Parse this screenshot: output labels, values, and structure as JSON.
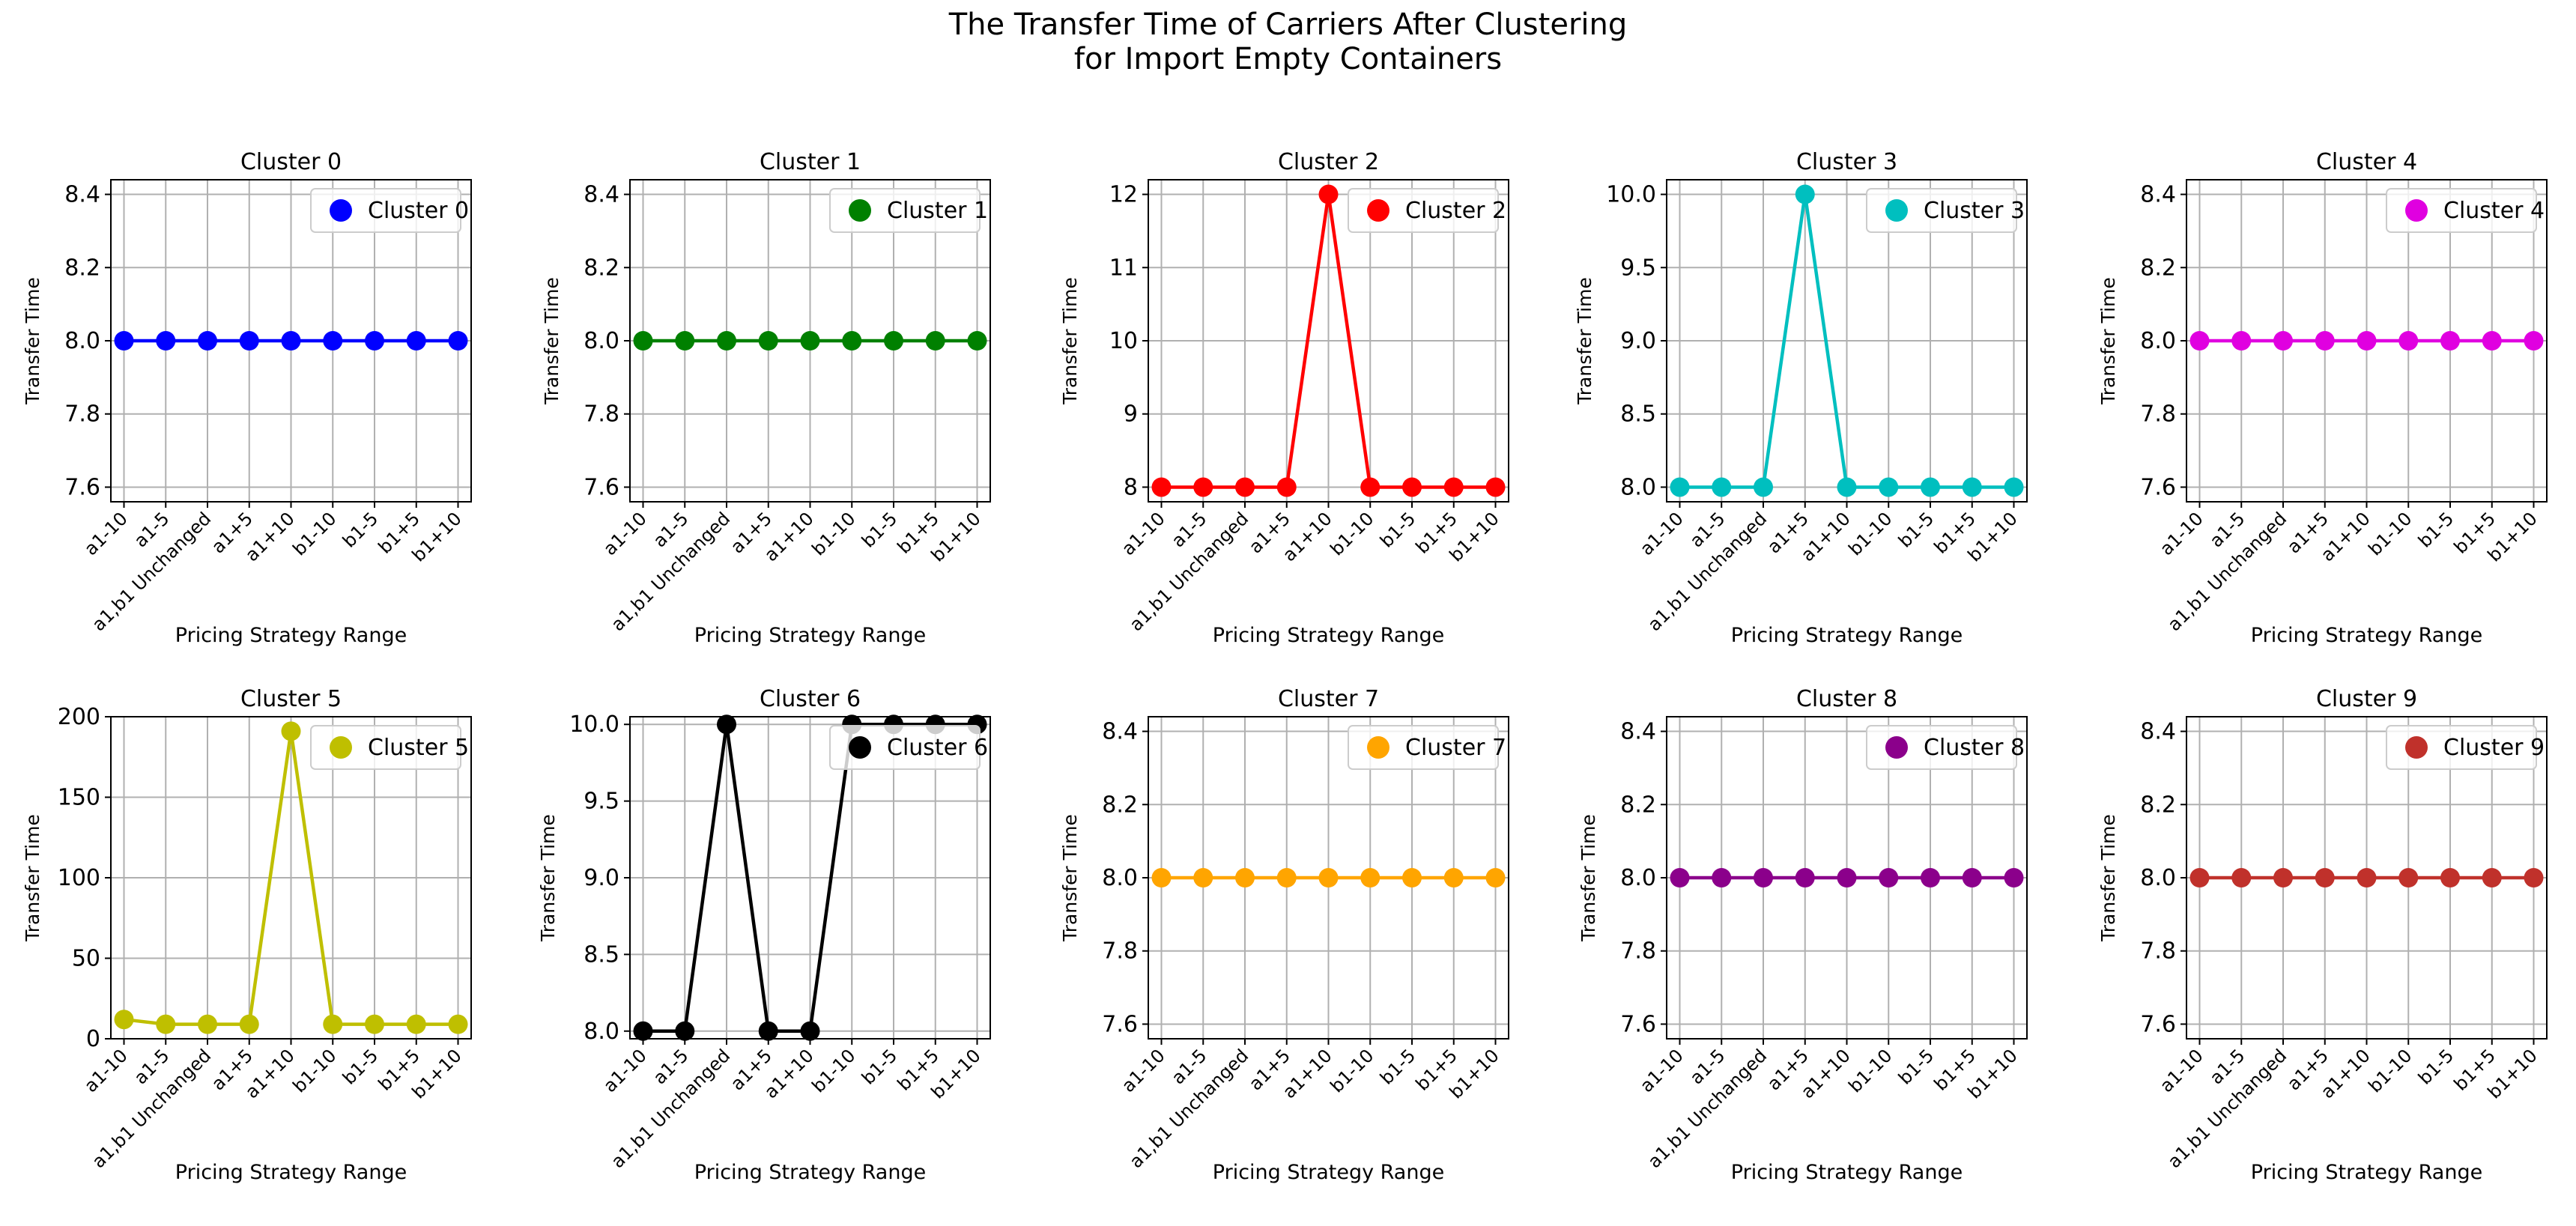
{
  "figure": {
    "title_line1": "The Transfer Time of Carriers After Clustering",
    "title_line2": "for Import Empty Containers"
  },
  "chart_data": [
    {
      "type": "line",
      "title": "Cluster 0",
      "legend": "Cluster 0",
      "color": "#0000ff",
      "xlabel": "Pricing Strategy Range",
      "ylabel": "Transfer Time",
      "categories": [
        "a1-10",
        "a1-5",
        "a1,b1 Unchanged",
        "a1+5",
        "a1+10",
        "b1-10",
        "b1-5",
        "b1+5",
        "b1+10"
      ],
      "values": [
        8,
        8,
        8,
        8,
        8,
        8,
        8,
        8,
        8
      ],
      "ylim": [
        7.56,
        8.44
      ],
      "yticks": [
        7.6,
        7.8,
        8.0,
        8.2,
        8.4
      ],
      "ytick_labels": [
        "7.6",
        "7.8",
        "8.0",
        "8.2",
        "8.4"
      ],
      "legend_position": "upper right",
      "grid": true
    },
    {
      "type": "line",
      "title": "Cluster 1",
      "legend": "Cluster 1",
      "color": "#008000",
      "xlabel": "Pricing Strategy Range",
      "ylabel": "Transfer Time",
      "categories": [
        "a1-10",
        "a1-5",
        "a1,b1 Unchanged",
        "a1+5",
        "a1+10",
        "b1-10",
        "b1-5",
        "b1+5",
        "b1+10"
      ],
      "values": [
        8,
        8,
        8,
        8,
        8,
        8,
        8,
        8,
        8
      ],
      "ylim": [
        7.56,
        8.44
      ],
      "yticks": [
        7.6,
        7.8,
        8.0,
        8.2,
        8.4
      ],
      "ytick_labels": [
        "7.6",
        "7.8",
        "8.0",
        "8.2",
        "8.4"
      ],
      "legend_position": "upper right",
      "grid": true
    },
    {
      "type": "line",
      "title": "Cluster 2",
      "legend": "Cluster 2",
      "color": "#ff0000",
      "xlabel": "Pricing Strategy Range",
      "ylabel": "Transfer Time",
      "categories": [
        "a1-10",
        "a1-5",
        "a1,b1 Unchanged",
        "a1+5",
        "a1+10",
        "b1-10",
        "b1-5",
        "b1+5",
        "b1+10"
      ],
      "values": [
        8,
        8,
        8,
        8,
        12,
        8,
        8,
        8,
        8
      ],
      "ylim": [
        7.8,
        12.2
      ],
      "yticks": [
        8,
        9,
        10,
        11,
        12
      ],
      "ytick_labels": [
        "8",
        "9",
        "10",
        "11",
        "12"
      ],
      "legend_position": "upper right",
      "grid": true
    },
    {
      "type": "line",
      "title": "Cluster 3",
      "legend": "Cluster 3",
      "color": "#00bfbf",
      "xlabel": "Pricing Strategy Range",
      "ylabel": "Transfer Time",
      "categories": [
        "a1-10",
        "a1-5",
        "a1,b1 Unchanged",
        "a1+5",
        "a1+10",
        "b1-10",
        "b1-5",
        "b1+5",
        "b1+10"
      ],
      "values": [
        8,
        8,
        8,
        10,
        8,
        8,
        8,
        8,
        8
      ],
      "ylim": [
        7.9,
        10.1
      ],
      "yticks": [
        8.0,
        8.5,
        9.0,
        9.5,
        10.0
      ],
      "ytick_labels": [
        "8.0",
        "8.5",
        "9.0",
        "9.5",
        "10.0"
      ],
      "legend_position": "upper right",
      "grid": true
    },
    {
      "type": "line",
      "title": "Cluster 4",
      "legend": "Cluster 4",
      "color": "#e000e0",
      "xlabel": "Pricing Strategy Range",
      "ylabel": "Transfer Time",
      "categories": [
        "a1-10",
        "a1-5",
        "a1,b1 Unchanged",
        "a1+5",
        "a1+10",
        "b1-10",
        "b1-5",
        "b1+5",
        "b1+10"
      ],
      "values": [
        8,
        8,
        8,
        8,
        8,
        8,
        8,
        8,
        8
      ],
      "ylim": [
        7.56,
        8.44
      ],
      "yticks": [
        7.6,
        7.8,
        8.0,
        8.2,
        8.4
      ],
      "ytick_labels": [
        "7.6",
        "7.8",
        "8.0",
        "8.2",
        "8.4"
      ],
      "legend_position": "upper right",
      "grid": true
    },
    {
      "type": "line",
      "title": "Cluster 5",
      "legend": "Cluster 5",
      "color": "#bfbf00",
      "xlabel": "Pricing Strategy Range",
      "ylabel": "Transfer Time",
      "categories": [
        "a1-10",
        "a1-5",
        "a1,b1 Unchanged",
        "a1+5",
        "a1+10",
        "b1-10",
        "b1-5",
        "b1+5",
        "b1+10"
      ],
      "values": [
        12,
        9,
        9,
        9,
        191,
        9,
        9,
        9,
        9
      ],
      "ylim": [
        0,
        200
      ],
      "yticks": [
        0,
        50,
        100,
        150,
        200
      ],
      "ytick_labels": [
        "0",
        "50",
        "100",
        "150",
        "200"
      ],
      "legend_position": "upper right",
      "grid": true
    },
    {
      "type": "line",
      "title": "Cluster 6",
      "legend": "Cluster 6",
      "color": "#000000",
      "xlabel": "Pricing Strategy Range",
      "ylabel": "Transfer Time",
      "categories": [
        "a1-10",
        "a1-5",
        "a1,b1 Unchanged",
        "a1+5",
        "a1+10",
        "b1-10",
        "b1-5",
        "b1+5",
        "b1+10"
      ],
      "values": [
        8,
        8,
        10,
        8,
        8,
        10,
        10,
        10,
        10
      ],
      "ylim": [
        7.95,
        10.05
      ],
      "yticks": [
        8.0,
        8.5,
        9.0,
        9.5,
        10.0
      ],
      "ytick_labels": [
        "8.0",
        "8.5",
        "9.0",
        "9.5",
        "10.0"
      ],
      "legend_position": "upper right",
      "grid": true
    },
    {
      "type": "line",
      "title": "Cluster 7",
      "legend": "Cluster 7",
      "color": "#ffa500",
      "xlabel": "Pricing Strategy Range",
      "ylabel": "Transfer Time",
      "categories": [
        "a1-10",
        "a1-5",
        "a1,b1 Unchanged",
        "a1+5",
        "a1+10",
        "b1-10",
        "b1-5",
        "b1+5",
        "b1+10"
      ],
      "values": [
        8,
        8,
        8,
        8,
        8,
        8,
        8,
        8,
        8
      ],
      "ylim": [
        7.56,
        8.44
      ],
      "yticks": [
        7.6,
        7.8,
        8.0,
        8.2,
        8.4
      ],
      "ytick_labels": [
        "7.6",
        "7.8",
        "8.0",
        "8.2",
        "8.4"
      ],
      "legend_position": "upper right",
      "grid": true
    },
    {
      "type": "line",
      "title": "Cluster 8",
      "legend": "Cluster 8",
      "color": "#8b008b",
      "xlabel": "Pricing Strategy Range",
      "ylabel": "Transfer Time",
      "categories": [
        "a1-10",
        "a1-5",
        "a1,b1 Unchanged",
        "a1+5",
        "a1+10",
        "b1-10",
        "b1-5",
        "b1+5",
        "b1+10"
      ],
      "values": [
        8,
        8,
        8,
        8,
        8,
        8,
        8,
        8,
        8
      ],
      "ylim": [
        7.56,
        8.44
      ],
      "yticks": [
        7.6,
        7.8,
        8.0,
        8.2,
        8.4
      ],
      "ytick_labels": [
        "7.6",
        "7.8",
        "8.0",
        "8.2",
        "8.4"
      ],
      "legend_position": "upper right",
      "grid": true
    },
    {
      "type": "line",
      "title": "Cluster 9",
      "legend": "Cluster 9",
      "color": "#c0312b",
      "xlabel": "Pricing Strategy Range",
      "ylabel": "Transfer Time",
      "categories": [
        "a1-10",
        "a1-5",
        "a1,b1 Unchanged",
        "a1+5",
        "a1+10",
        "b1-10",
        "b1-5",
        "b1+5",
        "b1+10"
      ],
      "values": [
        8,
        8,
        8,
        8,
        8,
        8,
        8,
        8,
        8
      ],
      "ylim": [
        7.56,
        8.44
      ],
      "yticks": [
        7.6,
        7.8,
        8.0,
        8.2,
        8.4
      ],
      "ytick_labels": [
        "7.6",
        "7.8",
        "8.0",
        "8.2",
        "8.4"
      ],
      "legend_position": "upper right",
      "grid": true
    }
  ]
}
